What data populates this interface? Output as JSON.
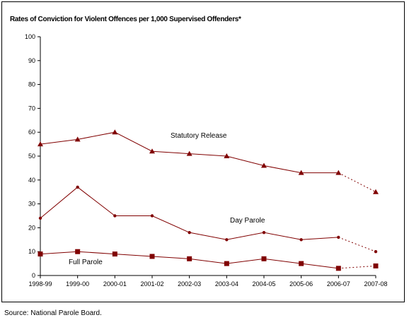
{
  "chart_data": {
    "type": "line",
    "title": "Rates of Conviction for Violent Offences per 1,000 Supervised Offenders*",
    "xlabel": "",
    "ylabel": "",
    "categories": [
      "1998-99",
      "1999-00",
      "2000-01",
      "2001-02",
      "2002-03",
      "2003-04",
      "2004-05",
      "2005-06",
      "2006-07",
      "2007-08"
    ],
    "ylim": [
      0,
      100
    ],
    "yticks": [
      0,
      10,
      20,
      30,
      40,
      50,
      60,
      70,
      80,
      90,
      100
    ],
    "grid": false,
    "legend": "none",
    "series": [
      {
        "name": "Statutory Release",
        "marker": "triangle",
        "values": [
          55,
          57,
          60,
          52,
          51,
          50,
          46,
          43,
          43,
          35
        ]
      },
      {
        "name": "Day Parole",
        "marker": "dot",
        "values": [
          24,
          37,
          25,
          25,
          18,
          15,
          18,
          15,
          16,
          10
        ]
      },
      {
        "name": "Full Parole",
        "marker": "square",
        "values": [
          9,
          10,
          9,
          8,
          7,
          5,
          7,
          5,
          3,
          4
        ]
      }
    ],
    "dashed_last_segment": true,
    "line_color": "#800000",
    "annotations": [
      {
        "text": "Statutory Release",
        "series": 0
      },
      {
        "text": "Day Parole",
        "series": 1
      },
      {
        "text": "Full Parole",
        "series": 2
      }
    ]
  },
  "source": "Source:  National Parole Board."
}
